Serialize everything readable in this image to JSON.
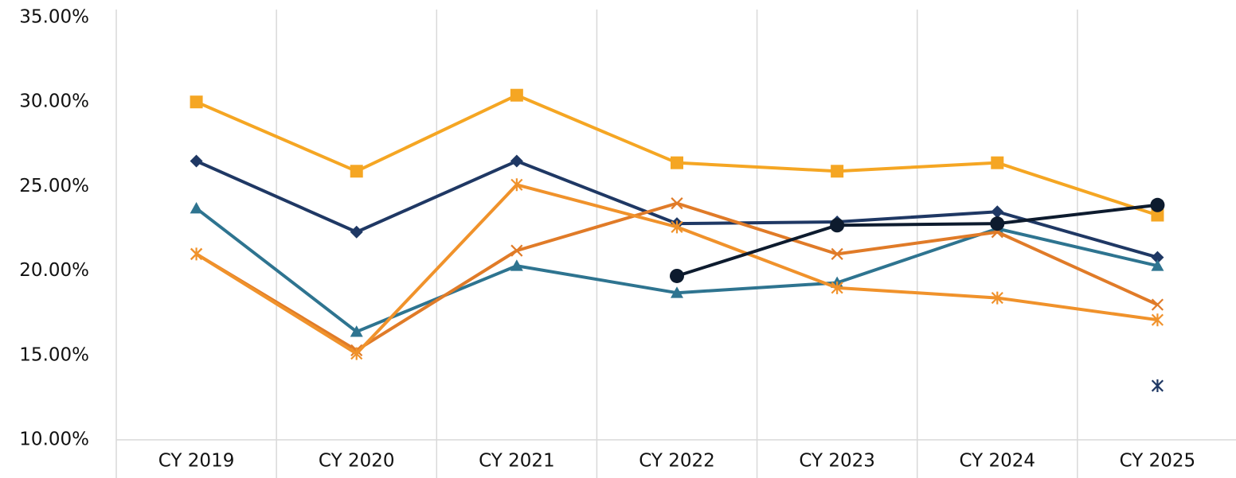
{
  "chart_data": {
    "type": "line",
    "categories": [
      "CY 2019",
      "CY 2020",
      "CY 2021",
      "CY 2022",
      "CY 2023",
      "CY 2024",
      "CY 2025"
    ],
    "ylim": [
      10,
      35
    ],
    "yticks": [
      {
        "value": 10,
        "label": "10.00%"
      },
      {
        "value": 15,
        "label": "15.00%"
      },
      {
        "value": 20,
        "label": "20.00%"
      },
      {
        "value": 25,
        "label": "25.00%"
      },
      {
        "value": 30,
        "label": "30.00%"
      },
      {
        "value": 35,
        "label": "35.00%"
      }
    ],
    "grid": false,
    "series": [
      {
        "color": "#f5a623",
        "marker": "square",
        "values": [
          30.0,
          25.9,
          30.4,
          26.4,
          25.9,
          26.4,
          23.3
        ]
      },
      {
        "color": "#1f3864",
        "marker": "diamond",
        "values": [
          26.5,
          22.3,
          26.5,
          22.8,
          22.9,
          23.5,
          20.8
        ]
      },
      {
        "color": "#2e7490",
        "marker": "triangle",
        "values": [
          23.7,
          16.4,
          20.3,
          18.7,
          19.3,
          22.5,
          20.3
        ]
      },
      {
        "color": "#e07b28",
        "marker": "x",
        "values": [
          21.0,
          15.3,
          21.2,
          24.0,
          21.0,
          22.3,
          18.0
        ]
      },
      {
        "color": "#f0922b",
        "marker": "star",
        "values": [
          21.0,
          15.1,
          25.1,
          22.6,
          19.0,
          18.4,
          17.1
        ]
      },
      {
        "color": "#0d1b2e",
        "marker": "circle",
        "values": [
          null,
          null,
          null,
          19.7,
          22.7,
          22.8,
          23.9
        ]
      },
      {
        "color": "#1f3864",
        "marker": "star",
        "values": [
          null,
          null,
          null,
          null,
          null,
          null,
          13.2
        ]
      }
    ]
  }
}
